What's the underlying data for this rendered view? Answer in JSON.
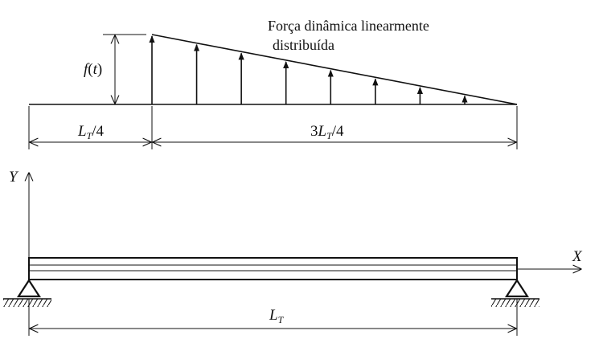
{
  "load": {
    "title_line1": "Força dinâmica linearmente",
    "title_line2": "distribuída",
    "amplitude_f": "f",
    "amplitude_open": "(",
    "amplitude_t": "t",
    "amplitude_close": ")",
    "arrow_count": 8
  },
  "dimensions": {
    "left_L": "L",
    "left_sub": "T",
    "left_suffix": "/4",
    "right_prefix": "3",
    "right_L": "L",
    "right_sub": "T",
    "right_suffix": "/4",
    "total_L": "L",
    "total_sub": "T"
  },
  "axes": {
    "x_label": "X",
    "y_label": "Y"
  },
  "colors": {
    "ink": "#111111",
    "background": "#ffffff"
  }
}
